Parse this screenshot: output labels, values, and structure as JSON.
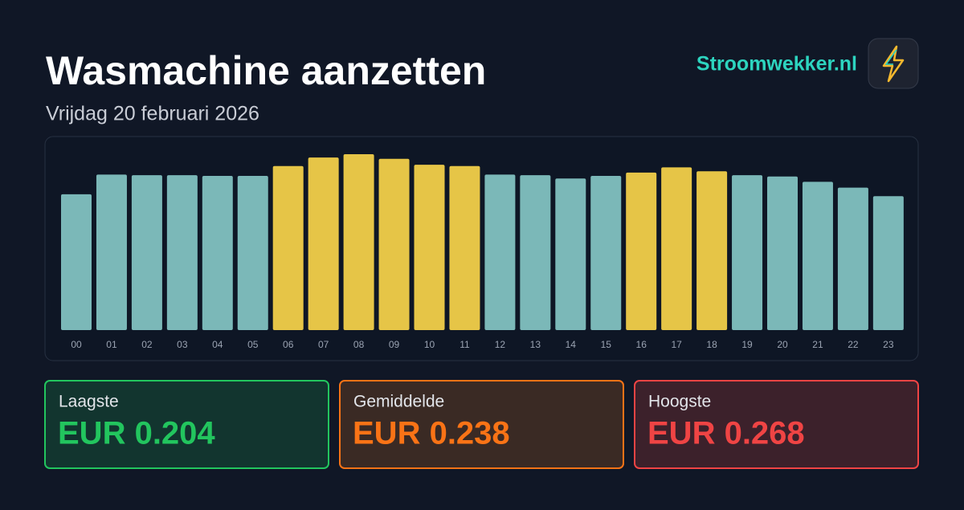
{
  "title": "Wasmachine aanzetten",
  "subtitle": "Vrijdag 20 februari 2026",
  "brand": "Stroomwekker.nl",
  "chart_data": {
    "type": "bar",
    "categories": [
      "00",
      "01",
      "02",
      "03",
      "04",
      "05",
      "06",
      "07",
      "08",
      "09",
      "10",
      "11",
      "12",
      "13",
      "14",
      "15",
      "16",
      "17",
      "18",
      "19",
      "20",
      "21",
      "22",
      "23"
    ],
    "values": [
      0.207,
      0.237,
      0.236,
      0.236,
      0.235,
      0.235,
      0.25,
      0.263,
      0.268,
      0.261,
      0.252,
      0.25,
      0.237,
      0.236,
      0.231,
      0.235,
      0.24,
      0.248,
      0.242,
      0.236,
      0.234,
      0.226,
      0.217,
      0.204
    ],
    "colors": [
      "#7bb8b8",
      "#7bb8b8",
      "#7bb8b8",
      "#7bb8b8",
      "#7bb8b8",
      "#7bb8b8",
      "#e6c547",
      "#e6c547",
      "#e6c547",
      "#e6c547",
      "#e6c547",
      "#e6c547",
      "#7bb8b8",
      "#7bb8b8",
      "#7bb8b8",
      "#7bb8b8",
      "#e6c547",
      "#e6c547",
      "#e6c547",
      "#7bb8b8",
      "#7bb8b8",
      "#7bb8b8",
      "#7bb8b8",
      "#7bb8b8"
    ]
  },
  "stats": [
    {
      "label": "Laagste",
      "value": "EUR 0.204",
      "color": "#22c55e",
      "background": "#12352f"
    },
    {
      "label": "Gemiddelde",
      "value": "EUR 0.238",
      "color": "#f97316",
      "background": "#3a2a24"
    },
    {
      "label": "Hoogste",
      "value": "EUR 0.268",
      "color": "#ef4444",
      "background": "#3c212b"
    }
  ]
}
